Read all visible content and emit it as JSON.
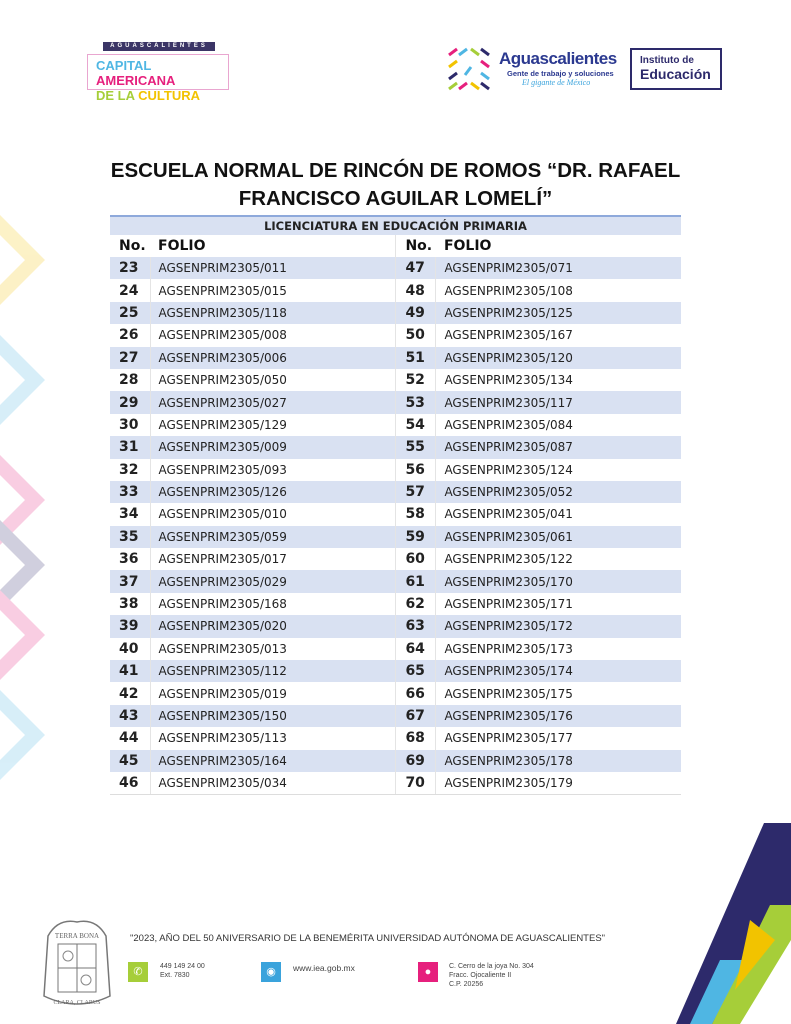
{
  "header": {
    "logo_cac": {
      "top": "AGUASCALIENTES",
      "line1a": "CAPITAL",
      "line1b": "AMERICANA",
      "line2a": "DE LA",
      "line2b": "CULTURA"
    },
    "logo_state": {
      "name": "Aguascalientes",
      "tagline": "Gente de trabajo y soluciones",
      "slogan": "El gigante de México"
    },
    "logo_iea": {
      "line1": "Instituto de",
      "line2": "Educación"
    }
  },
  "title": "ESCUELA NORMAL DE RINCÓN DE ROMOS “DR. RAFAEL FRANCISCO AGUILAR LOMELÍ”",
  "table": {
    "banner": "LICENCIATURA EN EDUCACIÓN PRIMARIA",
    "col_no": "No.",
    "col_folio": "FOLIO",
    "rows": [
      [
        [
          "23",
          "AGSENPRIM2305/011"
        ],
        [
          "47",
          "AGSENPRIM2305/071"
        ]
      ],
      [
        [
          "24",
          "AGSENPRIM2305/015"
        ],
        [
          "48",
          "AGSENPRIM2305/108"
        ]
      ],
      [
        [
          "25",
          "AGSENPRIM2305/118"
        ],
        [
          "49",
          "AGSENPRIM2305/125"
        ]
      ],
      [
        [
          "26",
          "AGSENPRIM2305/008"
        ],
        [
          "50",
          "AGSENPRIM2305/167"
        ]
      ],
      [
        [
          "27",
          "AGSENPRIM2305/006"
        ],
        [
          "51",
          "AGSENPRIM2305/120"
        ]
      ],
      [
        [
          "28",
          "AGSENPRIM2305/050"
        ],
        [
          "52",
          "AGSENPRIM2305/134"
        ]
      ],
      [
        [
          "29",
          "AGSENPRIM2305/027"
        ],
        [
          "53",
          "AGSENPRIM2305/117"
        ]
      ],
      [
        [
          "30",
          "AGSENPRIM2305/129"
        ],
        [
          "54",
          "AGSENPRIM2305/084"
        ]
      ],
      [
        [
          "31",
          "AGSENPRIM2305/009"
        ],
        [
          "55",
          "AGSENPRIM2305/087"
        ]
      ],
      [
        [
          "32",
          "AGSENPRIM2305/093"
        ],
        [
          "56",
          "AGSENPRIM2305/124"
        ]
      ],
      [
        [
          "33",
          "AGSENPRIM2305/126"
        ],
        [
          "57",
          "AGSENPRIM2305/052"
        ]
      ],
      [
        [
          "34",
          "AGSENPRIM2305/010"
        ],
        [
          "58",
          "AGSENPRIM2305/041"
        ]
      ],
      [
        [
          "35",
          "AGSENPRIM2305/059"
        ],
        [
          "59",
          "AGSENPRIM2305/061"
        ]
      ],
      [
        [
          "36",
          "AGSENPRIM2305/017"
        ],
        [
          "60",
          "AGSENPRIM2305/122"
        ]
      ],
      [
        [
          "37",
          "AGSENPRIM2305/029"
        ],
        [
          "61",
          "AGSENPRIM2305/170"
        ]
      ],
      [
        [
          "38",
          "AGSENPRIM2305/168"
        ],
        [
          "62",
          "AGSENPRIM2305/171"
        ]
      ],
      [
        [
          "39",
          "AGSENPRIM2305/020"
        ],
        [
          "63",
          "AGSENPRIM2305/172"
        ]
      ],
      [
        [
          "40",
          "AGSENPRIM2305/013"
        ],
        [
          "64",
          "AGSENPRIM2305/173"
        ]
      ],
      [
        [
          "41",
          "AGSENPRIM2305/112"
        ],
        [
          "65",
          "AGSENPRIM2305/174"
        ]
      ],
      [
        [
          "42",
          "AGSENPRIM2305/019"
        ],
        [
          "66",
          "AGSENPRIM2305/175"
        ]
      ],
      [
        [
          "43",
          "AGSENPRIM2305/150"
        ],
        [
          "67",
          "AGSENPRIM2305/176"
        ]
      ],
      [
        [
          "44",
          "AGSENPRIM2305/113"
        ],
        [
          "68",
          "AGSENPRIM2305/177"
        ]
      ],
      [
        [
          "45",
          "AGSENPRIM2305/164"
        ],
        [
          "69",
          "AGSENPRIM2305/178"
        ]
      ],
      [
        [
          "46",
          "AGSENPRIM2305/034"
        ],
        [
          "70",
          "AGSENPRIM2305/179"
        ]
      ]
    ]
  },
  "footer": {
    "seal": {
      "top": "TERRA BONA",
      "bottom": "CLARA, CLARUS"
    },
    "motto": "\"2023, AÑO DEL 50 ANIVERSARIO DE LA BENEMÉRITA UNIVERSIDAD AUTÓNOMA DE AGUASCALIENTES\"",
    "phone": {
      "icon": "phone-icon",
      "color": "#a6ce39",
      "line1": "449 149 24 00",
      "line2": "Ext. 7830"
    },
    "web": {
      "icon": "globe-icon",
      "color": "#3aa3dc",
      "text": "www.iea.gob.mx"
    },
    "address": {
      "icon": "location-pin-icon",
      "color": "#e6207d",
      "line1": "C. Cerro de la joya No. 304",
      "line2": "Fracc. Ojocaliente II",
      "line3": "C.P. 20256"
    }
  },
  "colors": {
    "row_stripe": "#d9e1f2",
    "banner_border": "#8ea9db",
    "brand_blue": "#2b3990"
  }
}
